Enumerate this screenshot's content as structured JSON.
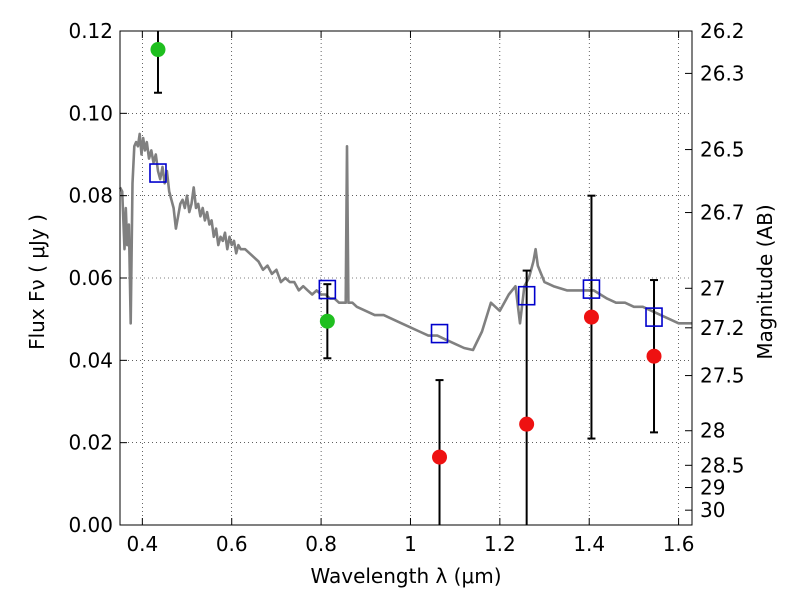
{
  "chart_data": {
    "type": "scatter",
    "xlabel": "Wavelength  λ (μm)",
    "ylabel": "Flux  Fν  ( μJy )",
    "ylabel_right": "Magnitude (AB)",
    "xlim": [
      0.35,
      1.63
    ],
    "ylim": [
      0.0,
      0.12
    ],
    "grid": true,
    "x_ticks": [
      0.4,
      0.6,
      0.8,
      1.0,
      1.2,
      1.4,
      1.6
    ],
    "x_tick_labels": [
      "0.4",
      "0.6",
      "0.8",
      "1",
      "1.2",
      "1.4",
      "1.6"
    ],
    "y_ticks": [
      0.0,
      0.02,
      0.04,
      0.06,
      0.08,
      0.1,
      0.12
    ],
    "y_tick_labels": [
      "0.00",
      "0.02",
      "0.04",
      "0.06",
      "0.08",
      "0.10",
      "0.12"
    ],
    "right_ticks": [
      {
        "label": "26.2",
        "flux": 0.12
      },
      {
        "label": "26.3",
        "flux": 0.1097
      },
      {
        "label": "26.5",
        "flux": 0.0912
      },
      {
        "label": "26.7",
        "flux": 0.0759
      },
      {
        "label": "27",
        "flux": 0.0575
      },
      {
        "label": "27.2",
        "flux": 0.0479
      },
      {
        "label": "27.5",
        "flux": 0.0363
      },
      {
        "label": "28",
        "flux": 0.0229
      },
      {
        "label": "28.5",
        "flux": 0.0145
      },
      {
        "label": "29",
        "flux": 0.0091
      },
      {
        "label": "30",
        "flux": 0.0036
      }
    ],
    "colors": {
      "detection": "#1fbf1f",
      "upper_limit": "#ee1111",
      "model_band": "#0000cc",
      "sed": "#808080",
      "errorbar": "#000000"
    },
    "series": [
      {
        "kind": "detection",
        "points": [
          {
            "x": 0.435,
            "y": 0.1155,
            "err_low": 0.0105,
            "err_high": 0.0055
          },
          {
            "x": 0.814,
            "y": 0.0495,
            "err_low": 0.009,
            "err_high": 0.009
          }
        ]
      },
      {
        "kind": "upper_limit",
        "points": [
          {
            "x": 1.065,
            "y": 0.0165,
            "err_low": 0.0185,
            "err_high": 0.0187
          },
          {
            "x": 1.26,
            "y": 0.0245,
            "err_low": 0.0275,
            "err_high": 0.0373
          },
          {
            "x": 1.405,
            "y": 0.0505,
            "err_low": 0.0295,
            "err_high": 0.0295
          },
          {
            "x": 1.545,
            "y": 0.041,
            "err_low": 0.0185,
            "err_high": 0.0185
          }
        ]
      },
      {
        "kind": "model_band",
        "points": [
          {
            "x": 0.435,
            "y": 0.0855
          },
          {
            "x": 0.814,
            "y": 0.0572
          },
          {
            "x": 1.065,
            "y": 0.0465
          },
          {
            "x": 1.26,
            "y": 0.0557
          },
          {
            "x": 1.405,
            "y": 0.0573
          },
          {
            "x": 1.545,
            "y": 0.0505
          }
        ]
      },
      {
        "kind": "sed",
        "points": [
          [
            0.35,
            0.082
          ],
          [
            0.355,
            0.081
          ],
          [
            0.36,
            0.067
          ],
          [
            0.363,
            0.077
          ],
          [
            0.366,
            0.068
          ],
          [
            0.37,
            0.073
          ],
          [
            0.374,
            0.049
          ],
          [
            0.378,
            0.083
          ],
          [
            0.382,
            0.092
          ],
          [
            0.386,
            0.093
          ],
          [
            0.39,
            0.092
          ],
          [
            0.394,
            0.095
          ],
          [
            0.398,
            0.09
          ],
          [
            0.402,
            0.094
          ],
          [
            0.406,
            0.091
          ],
          [
            0.41,
            0.093
          ],
          [
            0.415,
            0.089
          ],
          [
            0.42,
            0.091
          ],
          [
            0.425,
            0.088
          ],
          [
            0.43,
            0.09
          ],
          [
            0.435,
            0.086
          ],
          [
            0.44,
            0.084
          ],
          [
            0.445,
            0.087
          ],
          [
            0.45,
            0.083
          ],
          [
            0.455,
            0.086
          ],
          [
            0.46,
            0.081
          ],
          [
            0.465,
            0.079
          ],
          [
            0.47,
            0.077
          ],
          [
            0.475,
            0.072
          ],
          [
            0.48,
            0.075
          ],
          [
            0.485,
            0.078
          ],
          [
            0.49,
            0.079
          ],
          [
            0.495,
            0.077
          ],
          [
            0.5,
            0.08
          ],
          [
            0.505,
            0.076
          ],
          [
            0.51,
            0.078
          ],
          [
            0.515,
            0.082
          ],
          [
            0.52,
            0.077
          ],
          [
            0.525,
            0.078
          ],
          [
            0.53,
            0.075
          ],
          [
            0.535,
            0.077
          ],
          [
            0.54,
            0.074
          ],
          [
            0.545,
            0.076
          ],
          [
            0.55,
            0.073
          ],
          [
            0.555,
            0.074
          ],
          [
            0.56,
            0.07
          ],
          [
            0.565,
            0.072
          ],
          [
            0.57,
            0.068
          ],
          [
            0.575,
            0.07
          ],
          [
            0.58,
            0.069
          ],
          [
            0.585,
            0.071
          ],
          [
            0.59,
            0.067
          ],
          [
            0.595,
            0.07
          ],
          [
            0.6,
            0.068
          ],
          [
            0.605,
            0.069
          ],
          [
            0.61,
            0.066
          ],
          [
            0.615,
            0.068
          ],
          [
            0.62,
            0.067
          ],
          [
            0.63,
            0.067
          ],
          [
            0.64,
            0.066
          ],
          [
            0.65,
            0.065
          ],
          [
            0.66,
            0.064
          ],
          [
            0.67,
            0.062
          ],
          [
            0.68,
            0.063
          ],
          [
            0.69,
            0.061
          ],
          [
            0.7,
            0.062
          ],
          [
            0.71,
            0.059
          ],
          [
            0.72,
            0.06
          ],
          [
            0.73,
            0.059
          ],
          [
            0.74,
            0.059
          ],
          [
            0.75,
            0.057
          ],
          [
            0.76,
            0.058
          ],
          [
            0.77,
            0.057
          ],
          [
            0.78,
            0.056
          ],
          [
            0.79,
            0.057
          ],
          [
            0.8,
            0.056
          ],
          [
            0.81,
            0.056
          ],
          [
            0.82,
            0.055
          ],
          [
            0.83,
            0.055
          ],
          [
            0.84,
            0.054
          ],
          [
            0.85,
            0.054
          ],
          [
            0.855,
            0.054
          ],
          [
            0.858,
            0.092
          ],
          [
            0.861,
            0.054
          ],
          [
            0.87,
            0.054
          ],
          [
            0.88,
            0.053
          ],
          [
            0.9,
            0.052
          ],
          [
            0.92,
            0.051
          ],
          [
            0.94,
            0.051
          ],
          [
            0.96,
            0.05
          ],
          [
            0.98,
            0.049
          ],
          [
            1.0,
            0.048
          ],
          [
            1.02,
            0.047
          ],
          [
            1.04,
            0.046
          ],
          [
            1.06,
            0.046
          ],
          [
            1.08,
            0.045
          ],
          [
            1.1,
            0.044
          ],
          [
            1.12,
            0.043
          ],
          [
            1.14,
            0.0425
          ],
          [
            1.16,
            0.047
          ],
          [
            1.18,
            0.054
          ],
          [
            1.2,
            0.052
          ],
          [
            1.22,
            0.056
          ],
          [
            1.235,
            0.058
          ],
          [
            1.245,
            0.049
          ],
          [
            1.255,
            0.058
          ],
          [
            1.265,
            0.06
          ],
          [
            1.275,
            0.064
          ],
          [
            1.28,
            0.067
          ],
          [
            1.285,
            0.063
          ],
          [
            1.3,
            0.059
          ],
          [
            1.32,
            0.058
          ],
          [
            1.35,
            0.057
          ],
          [
            1.38,
            0.057
          ],
          [
            1.41,
            0.057
          ],
          [
            1.44,
            0.055
          ],
          [
            1.46,
            0.054
          ],
          [
            1.48,
            0.054
          ],
          [
            1.5,
            0.053
          ],
          [
            1.52,
            0.053
          ],
          [
            1.54,
            0.052
          ],
          [
            1.56,
            0.051
          ],
          [
            1.58,
            0.05
          ],
          [
            1.6,
            0.049
          ],
          [
            1.63,
            0.049
          ]
        ]
      }
    ]
  }
}
